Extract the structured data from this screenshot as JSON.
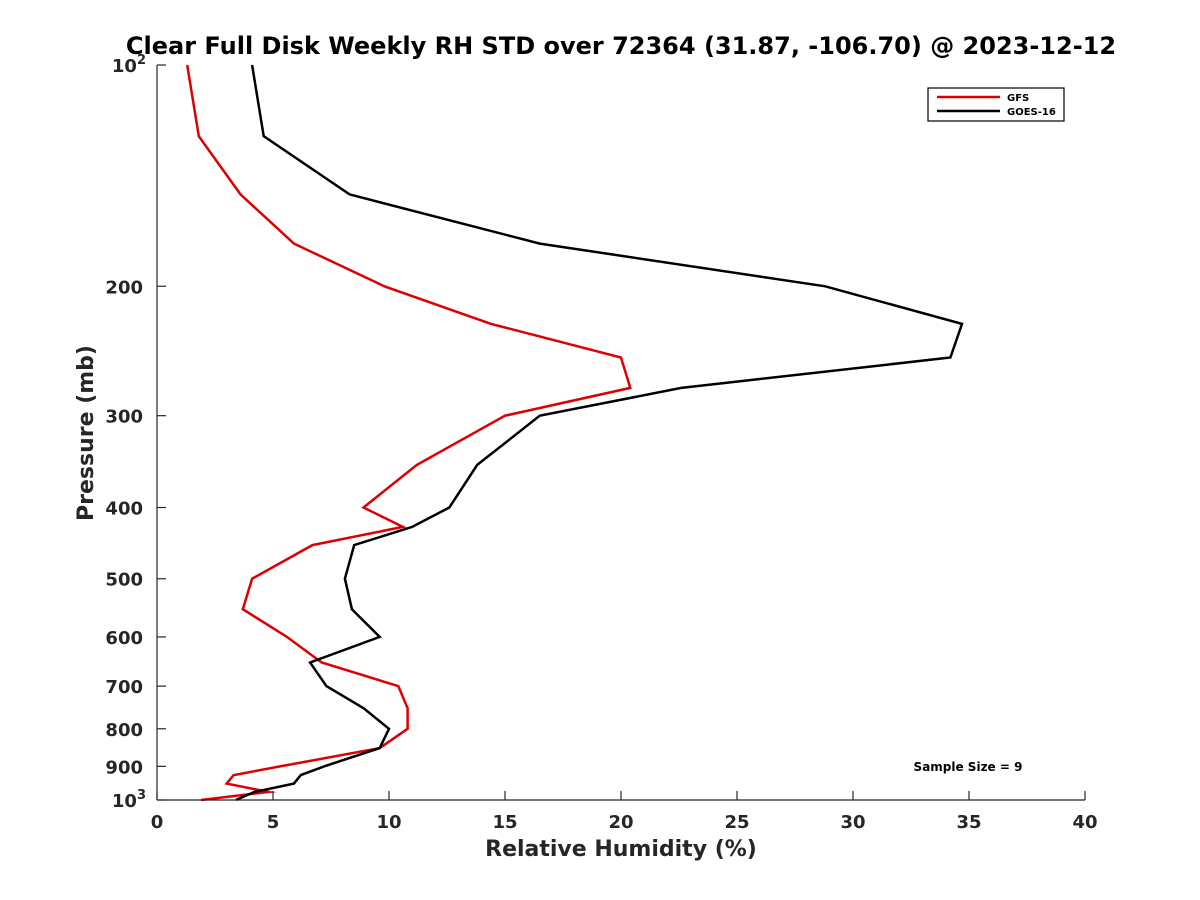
{
  "chart_data": {
    "type": "line",
    "title": "Clear Full Disk Weekly RH STD over 72364 (31.87, -106.70) @ 2023-12-12",
    "xlabel": "Relative Humidity (%)",
    "ylabel": "Pressure (mb)",
    "xlim": [
      0,
      40
    ],
    "ylim": [
      100,
      1000
    ],
    "y_scale": "log",
    "y_reversed": true,
    "grid": false,
    "legend_position": "top-right",
    "x_ticks": [
      0,
      5,
      10,
      15,
      20,
      25,
      30,
      35,
      40
    ],
    "y_ticks": [
      {
        "value": 100,
        "base": "10",
        "exp": "2"
      },
      {
        "value": 200,
        "label": "200"
      },
      {
        "value": 300,
        "label": "300"
      },
      {
        "value": 400,
        "label": "400"
      },
      {
        "value": 500,
        "label": "500"
      },
      {
        "value": 600,
        "label": "600"
      },
      {
        "value": 700,
        "label": "700"
      },
      {
        "value": 800,
        "label": "800"
      },
      {
        "value": 900,
        "label": "900"
      },
      {
        "value": 1000,
        "base": "10",
        "exp": "3"
      }
    ],
    "series": [
      {
        "name": "GFS",
        "color": "#dd0000",
        "points": [
          [
            1.3,
            100
          ],
          [
            1.8,
            125
          ],
          [
            3.6,
            150
          ],
          [
            5.9,
            175
          ],
          [
            9.8,
            200
          ],
          [
            14.4,
            225
          ],
          [
            20.0,
            250
          ],
          [
            20.4,
            275
          ],
          [
            15.0,
            300
          ],
          [
            11.2,
            350
          ],
          [
            8.9,
            400
          ],
          [
            10.6,
            425
          ],
          [
            6.7,
            450
          ],
          [
            4.1,
            500
          ],
          [
            3.7,
            550
          ],
          [
            5.6,
            600
          ],
          [
            7.1,
            650
          ],
          [
            10.4,
            700
          ],
          [
            10.8,
            750
          ],
          [
            10.8,
            800
          ],
          [
            9.6,
            850
          ],
          [
            5.3,
            900
          ],
          [
            3.3,
            925
          ],
          [
            3.0,
            950
          ],
          [
            4.8,
            975
          ],
          [
            1.9,
            1000
          ]
        ]
      },
      {
        "name": "GOES-16",
        "color": "#000000",
        "points": [
          [
            4.1,
            100
          ],
          [
            4.6,
            125
          ],
          [
            8.3,
            150
          ],
          [
            16.5,
            175
          ],
          [
            28.8,
            200
          ],
          [
            34.7,
            225
          ],
          [
            34.2,
            250
          ],
          [
            22.6,
            275
          ],
          [
            16.5,
            300
          ],
          [
            13.8,
            350
          ],
          [
            12.6,
            400
          ],
          [
            11.0,
            425
          ],
          [
            8.5,
            450
          ],
          [
            8.1,
            500
          ],
          [
            8.4,
            550
          ],
          [
            9.6,
            600
          ],
          [
            6.6,
            650
          ],
          [
            7.3,
            700
          ],
          [
            8.9,
            750
          ],
          [
            10.0,
            800
          ],
          [
            9.6,
            850
          ],
          [
            7.2,
            900
          ],
          [
            6.2,
            925
          ],
          [
            5.9,
            950
          ],
          [
            4.2,
            975
          ],
          [
            3.4,
            1000
          ]
        ]
      }
    ],
    "annotation": "Sample Size = 9"
  }
}
